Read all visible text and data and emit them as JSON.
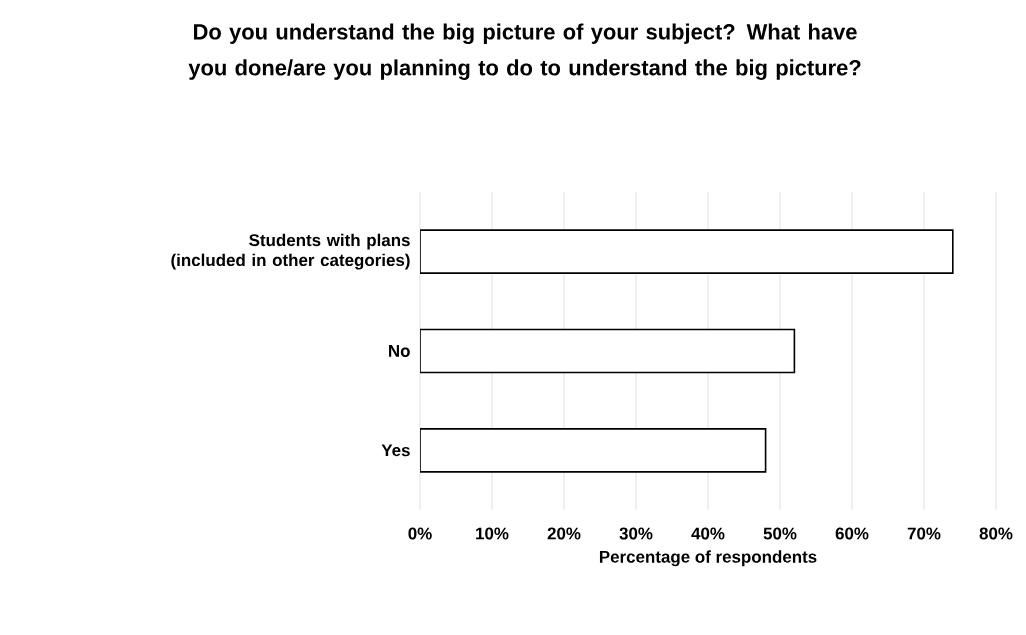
{
  "chart_data": {
    "type": "bar",
    "orientation": "horizontal",
    "title": "Do you understand the big picture of your subject? What have you done/are you planning to do to understand the big picture?",
    "categories": [
      "Students with plans (included in other categories)",
      "No",
      "Yes"
    ],
    "values": [
      74,
      52,
      48
    ],
    "colors": [
      "#000000",
      "#000000",
      "#000000"
    ],
    "xlabel": "Percentage of respondents",
    "xlim": [
      0,
      80
    ],
    "xticks": [
      {
        "value": 0,
        "label": "0%"
      },
      {
        "value": 10,
        "label": "10%"
      },
      {
        "value": 20,
        "label": "20%"
      },
      {
        "value": 30,
        "label": "30%"
      },
      {
        "value": 40,
        "label": "40%"
      },
      {
        "value": 50,
        "label": "50%"
      },
      {
        "value": 60,
        "label": "60%"
      },
      {
        "value": 70,
        "label": "70%"
      },
      {
        "value": 80,
        "label": "80%"
      }
    ],
    "grid": "x"
  }
}
